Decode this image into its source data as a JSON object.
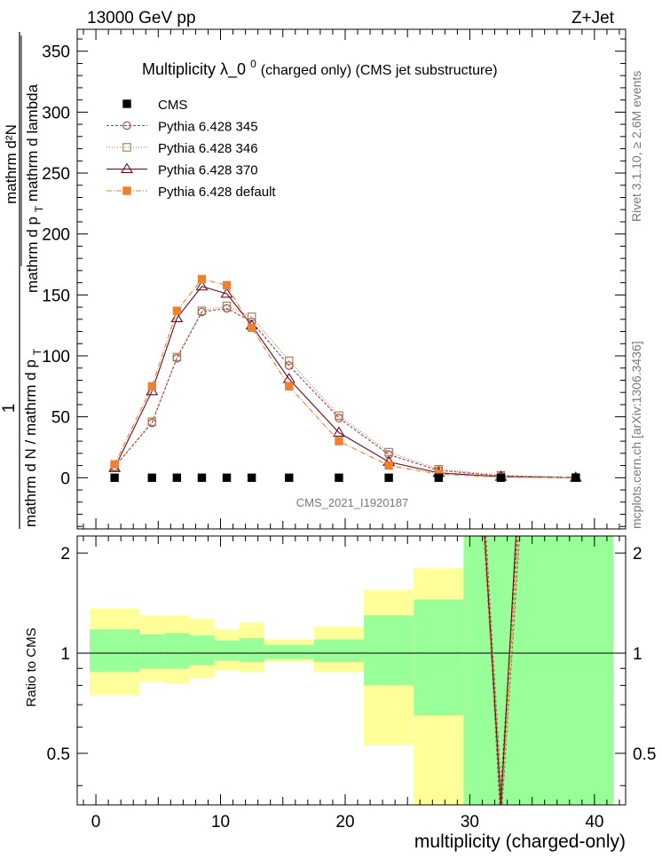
{
  "header": {
    "left": "13000 GeV pp",
    "right": "Z+Jet"
  },
  "side_labels": {
    "rivet": "Rivet 3.1.10, ≥ 2.6M events",
    "mcplots": "mcplots.cern.ch [arXiv:1306.3436]"
  },
  "chart_data": [
    {
      "type": "line",
      "title_main": "Multiplicity  λ_0",
      "title_sup": "0",
      "title_rest": " (charged only) (CMS jet substructure)",
      "watermark": "CMS_2021_I1920187",
      "ylabel_num": "1",
      "ylabel_den": "mathrm d N / mathrm d p",
      "ylabel_den_sub": "T",
      "ylabel_num2": "mathrm d²N",
      "ylabel_den2": "mathrm d p",
      "ylabel_den2_sub": "T",
      "ylabel_den2_rest": " mathrm d lambda",
      "xlim": [
        -1.5,
        42.5
      ],
      "ylim": [
        -42,
        368
      ],
      "yticks": [
        0,
        50,
        100,
        150,
        200,
        250,
        300,
        350
      ],
      "x": [
        1.5,
        4.5,
        6.5,
        8.5,
        10.5,
        12.5,
        15.5,
        19.5,
        23.5,
        27.5,
        32.5,
        38.5
      ],
      "series": [
        {
          "name": "CMS",
          "color": "#000000",
          "marker": "square-filled",
          "dash": "none",
          "values": [
            0,
            0,
            0,
            0,
            0,
            0,
            0,
            0,
            0,
            0,
            0,
            0
          ]
        },
        {
          "name": "Pythia 6.428 345",
          "color": "#b03a3a",
          "marker": "circle-open",
          "dash": "3,2",
          "values": [
            9,
            45,
            98,
            136,
            139,
            128,
            92,
            49,
            19,
            6,
            1.5,
            0.1
          ]
        },
        {
          "name": "Pythia 6.428 346",
          "color": "#a07850",
          "marker": "square-open",
          "dash": "1,2",
          "values": [
            9,
            46,
            99,
            137,
            141,
            132,
            96,
            51,
            21,
            7,
            2,
            0.2
          ]
        },
        {
          "name": "Pythia 6.428 370",
          "color": "#6a0a24",
          "marker": "triangle-open",
          "dash": "none",
          "values": [
            8,
            71,
            131,
            157,
            151,
            125,
            81,
            37,
            13,
            4,
            0.8,
            0.1
          ]
        },
        {
          "name": "Pythia 6.428 default",
          "color": "#f08030",
          "marker": "square-filled",
          "dash": "6,2,1,2",
          "values": [
            11,
            75,
            137,
            163,
            158,
            123,
            75,
            30,
            10,
            3,
            0.5,
            0.1
          ]
        }
      ]
    },
    {
      "type": "area",
      "ylabel": "Ratio to CMS",
      "xlabel": "multiplicity (charged-only)",
      "xlim": [
        -1.5,
        42.5
      ],
      "ylim": [
        0.35,
        2.25
      ],
      "yticks": [
        0.5,
        1,
        2
      ],
      "xticks": [
        0,
        10,
        20,
        30,
        40
      ],
      "bands": [
        {
          "x0": -0.5,
          "x1": 3.5,
          "y_lo": 0.75,
          "y_hi": 1.36,
          "g_lo": 0.88,
          "g_hi": 1.18
        },
        {
          "x0": 3.5,
          "x1": 5.5,
          "y_lo": 0.82,
          "y_hi": 1.3,
          "g_lo": 0.9,
          "g_hi": 1.14
        },
        {
          "x0": 5.5,
          "x1": 7.5,
          "y_lo": 0.81,
          "y_hi": 1.3,
          "g_lo": 0.9,
          "g_hi": 1.15
        },
        {
          "x0": 7.5,
          "x1": 9.5,
          "y_lo": 0.84,
          "y_hi": 1.27,
          "g_lo": 0.92,
          "g_hi": 1.13
        },
        {
          "x0": 9.5,
          "x1": 11.5,
          "y_lo": 0.89,
          "y_hi": 1.18,
          "g_lo": 0.95,
          "g_hi": 1.09
        },
        {
          "x0": 11.5,
          "x1": 13.5,
          "y_lo": 0.88,
          "y_hi": 1.24,
          "g_lo": 0.94,
          "g_hi": 1.11
        },
        {
          "x0": 13.5,
          "x1": 17.5,
          "y_lo": 0.94,
          "y_hi": 1.1,
          "g_lo": 0.96,
          "g_hi": 1.06
        },
        {
          "x0": 17.5,
          "x1": 21.5,
          "y_lo": 0.88,
          "y_hi": 1.2,
          "g_lo": 0.94,
          "g_hi": 1.1
        },
        {
          "x0": 21.5,
          "x1": 25.5,
          "y_lo": 0.53,
          "y_hi": 1.55,
          "g_lo": 0.8,
          "g_hi": 1.3
        },
        {
          "x0": 25.5,
          "x1": 29.5,
          "y_lo": 0.35,
          "y_hi": 1.8,
          "g_lo": 0.65,
          "g_hi": 1.45
        },
        {
          "x0": 29.5,
          "x1": 41.5,
          "y_lo": 0.35,
          "y_hi": 2.25,
          "g_lo": 0.35,
          "g_hi": 2.25
        }
      ],
      "band_colors": {
        "yellow": "#ffff99",
        "green": "#99ff99"
      },
      "spikes": [
        {
          "color": "#a07850",
          "dash": "3,2",
          "pts": [
            [
              31.3,
              2.25
            ],
            [
              32.6,
              0.35
            ],
            [
              34.0,
              2.25
            ]
          ]
        },
        {
          "color": "#b03a3a",
          "dash": "3,2",
          "pts": [
            [
              31.2,
              2.25
            ],
            [
              32.4,
              0.35
            ],
            [
              33.8,
              2.25
            ]
          ]
        },
        {
          "color": "#f08030",
          "dash": "4,2",
          "pts": [
            [
              31.1,
              2.25
            ],
            [
              32.5,
              0.35
            ],
            [
              33.9,
              2.25
            ]
          ]
        },
        {
          "color": "#6a0a24",
          "dash": "none",
          "pts": [
            [
              31.2,
              2.25
            ],
            [
              32.5,
              0.35
            ],
            [
              33.7,
              2.25
            ]
          ]
        }
      ]
    }
  ]
}
